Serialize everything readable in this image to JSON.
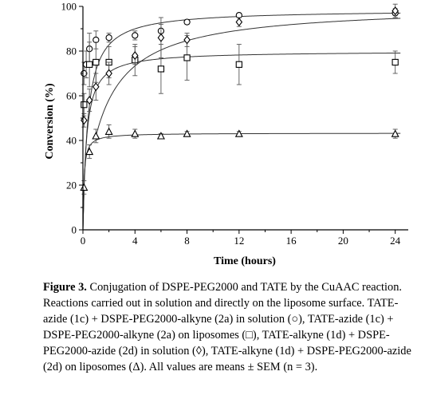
{
  "chart_data": {
    "type": "scatter",
    "xlabel": "Time (hours)",
    "ylabel": "Conversion (%)",
    "xlim": [
      0,
      25
    ],
    "ylim": [
      0,
      100
    ],
    "xticks": [
      0,
      4,
      8,
      12,
      16,
      20,
      24
    ],
    "yticks": [
      0,
      20,
      40,
      60,
      80,
      100
    ],
    "grid": false,
    "series": [
      {
        "marker": "circle",
        "x": [
          0.083,
          0.25,
          0.5,
          1,
          2,
          4,
          6,
          8,
          12,
          24
        ],
        "y": [
          70,
          74,
          81,
          85,
          86,
          87,
          89,
          93,
          96,
          97
        ],
        "err": [
          5,
          6,
          7,
          4,
          2,
          2,
          3,
          1,
          1,
          2
        ],
        "fit": {
          "model": "hyperbolic",
          "ymax": 98.5,
          "k": 0.38,
          "x0": 0
        }
      },
      {
        "marker": "square",
        "x": [
          0.083,
          0.5,
          1,
          2,
          4,
          6,
          8,
          12,
          24
        ],
        "y": [
          56,
          74,
          75,
          75,
          76,
          72,
          77,
          74,
          75
        ],
        "err": [
          5,
          10,
          9,
          7,
          7,
          11,
          10,
          9,
          5
        ],
        "fit": {
          "model": "hyperbolic",
          "ymax": 80,
          "k": 0.27,
          "x0": 0
        }
      },
      {
        "marker": "diamond",
        "x": [
          0.083,
          0.5,
          1,
          2,
          4,
          6,
          8,
          12,
          24
        ],
        "y": [
          49,
          58,
          64,
          70,
          78,
          86,
          85,
          93,
          98
        ],
        "err": [
          3,
          5,
          6,
          5,
          4,
          9,
          3,
          2,
          3
        ],
        "fit": {
          "model": "hyperbolic",
          "ymax": 100.5,
          "k": 2.6,
          "y0": 42,
          "x0": 1.0
        }
      },
      {
        "marker": "triangle",
        "x": [
          0.083,
          0.5,
          1,
          2,
          4,
          6,
          8,
          12,
          24
        ],
        "y": [
          19,
          35,
          42,
          44,
          43,
          42,
          43,
          43,
          43
        ],
        "err": [
          3,
          3,
          3,
          3,
          2,
          1,
          1,
          1,
          2
        ],
        "fit": {
          "model": "hyperbolic",
          "ymax": 43.3,
          "k": 0.08,
          "x0": 0
        }
      }
    ]
  },
  "caption": {
    "label": "Figure 3.",
    "text": " Conjugation of DSPE-PEG2000 and TATE by the CuAAC reaction. Reactions carried out in solution and directly on the liposome surface. TATE-azide (1c) + DSPE-PEG2000-alkyne (2a) in solution (○), TATE-azide (1c) + DSPE-PEG2000-alkyne (2a) on liposomes (□), TATE-alkyne (1d) + DSPE-PEG2000-azide (2d) in solution (◊), TATE-alkyne (1d) + DSPE-PEG2000-azide (2d) on liposomes (Δ). All values are means ± SEM (n = 3)."
  }
}
